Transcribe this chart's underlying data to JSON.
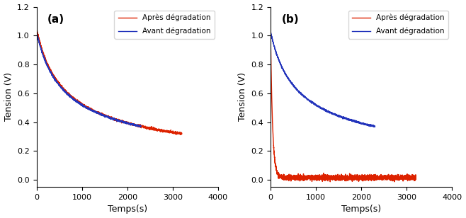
{
  "title_a": "(a)",
  "title_b": "(b)",
  "xlabel": "Temps(s)",
  "ylabel": "Tension (V)",
  "xlim": [
    0,
    4000
  ],
  "ylim": [
    -0.05,
    1.2
  ],
  "yticks": [
    0.0,
    0.2,
    0.4,
    0.6,
    0.8,
    1.0,
    1.2
  ],
  "xticks": [
    0,
    1000,
    2000,
    3000,
    4000
  ],
  "color_avant": "#2233bb",
  "color_apres": "#dd2200",
  "legend_avant": "Avant dégradation",
  "legend_apres": "Après dégradation",
  "linewidth": 1.0
}
